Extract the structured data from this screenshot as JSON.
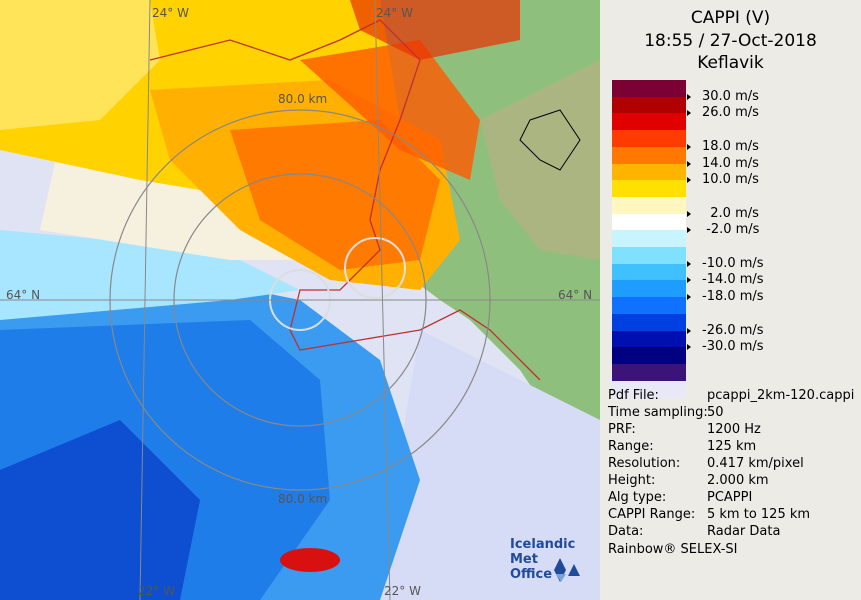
{
  "header": {
    "product": "CAPPI (V)",
    "datetime": "18:55 / 27-Oct-2018",
    "station": "Keflavik"
  },
  "map": {
    "lon_labels": [
      "24° W",
      "24° W",
      "22° W",
      "22° W"
    ],
    "lat_labels": [
      "64° N",
      "64° N"
    ],
    "range_labels": [
      "80.0 km",
      "80.0 km"
    ],
    "logo_line1": "Icelandic Met",
    "logo_line2": "Office"
  },
  "legend": {
    "colors": [
      "#7b0033",
      "#b00000",
      "#e00000",
      "#ff3b00",
      "#ff7800",
      "#ffb400",
      "#ffe000",
      "#fff6c0",
      "#ffffff",
      "#c8f4ff",
      "#7fe0ff",
      "#40c0ff",
      "#1e9cff",
      "#1070ff",
      "#0040e0",
      "#0010b0",
      "#000080",
      "#3c1478",
      "#e8e8f6"
    ],
    "labels": [
      {
        "text": "30.0 m/s",
        "band": 1
      },
      {
        "text": "26.0 m/s",
        "band": 2
      },
      {
        "text": "18.0 m/s",
        "band": 4
      },
      {
        "text": "14.0 m/s",
        "band": 5
      },
      {
        "text": "10.0 m/s",
        "band": 6
      },
      {
        "text": "  2.0 m/s",
        "band": 8
      },
      {
        "text": " -2.0 m/s",
        "band": 9
      },
      {
        "text": "-10.0 m/s",
        "band": 11
      },
      {
        "text": "-14.0 m/s",
        "band": 12
      },
      {
        "text": "-18.0 m/s",
        "band": 13
      },
      {
        "text": "-26.0 m/s",
        "band": 15
      },
      {
        "text": "-30.0 m/s",
        "band": 16
      }
    ]
  },
  "info": [
    {
      "key": "Pdf File:",
      "value": "pcappi_2km-120.cappi"
    },
    {
      "key": "Time sampling:",
      "value": "50"
    },
    {
      "key": "PRF:",
      "value": "1200 Hz"
    },
    {
      "key": "Range:",
      "value": "125 km"
    },
    {
      "key": "Resolution:",
      "value": "0.417 km/pixel"
    },
    {
      "key": "Height:",
      "value": "2.000 km"
    },
    {
      "key": "Alg type:",
      "value": "PCAPPI"
    },
    {
      "key": "CAPPI Range:",
      "value": "5 km to 125 km"
    },
    {
      "key": "Data:",
      "value": "Radar Data"
    }
  ],
  "footer": "Rainbow® SELEX-SI"
}
